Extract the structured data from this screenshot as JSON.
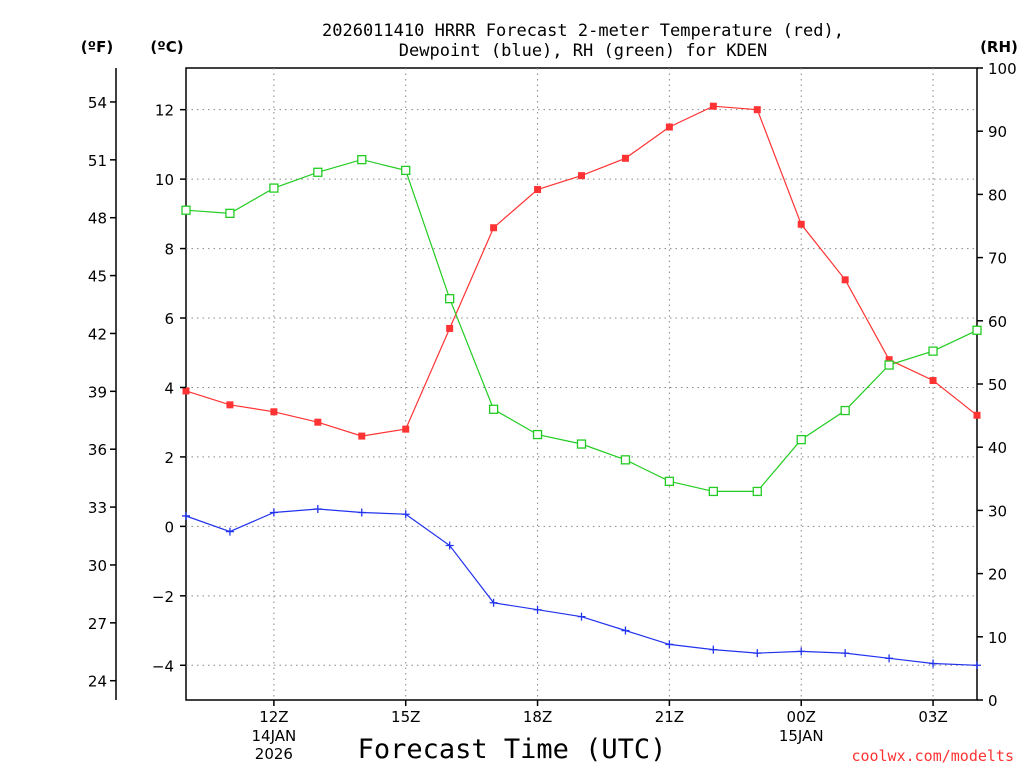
{
  "chart_data": {
    "type": "line",
    "title_lines": [
      "2026011410 HRRR Forecast 2-meter Temperature (red),",
      "Dewpoint (blue), RH (green) for KDEN"
    ],
    "xlabel": "Forecast Time (UTC)",
    "credit": "coolwx.com/modelts",
    "x_hours": [
      10,
      11,
      12,
      13,
      14,
      15,
      16,
      17,
      18,
      19,
      20,
      21,
      22,
      23,
      24,
      25,
      26,
      27,
      28
    ],
    "xlim": [
      10,
      28
    ],
    "x_ticks": [
      {
        "hour": 12,
        "label": "12Z",
        "sub": [
          "14JAN",
          "2026"
        ]
      },
      {
        "hour": 15,
        "label": "15Z",
        "sub": []
      },
      {
        "hour": 18,
        "label": "18Z",
        "sub": []
      },
      {
        "hour": 21,
        "label": "21Z",
        "sub": []
      },
      {
        "hour": 24,
        "label": "00Z",
        "sub": [
          "15JAN"
        ]
      },
      {
        "hour": 27,
        "label": "03Z",
        "sub": []
      }
    ],
    "axes": {
      "fahrenheit": {
        "unit_label": "(ºF)",
        "ticks": [
          24,
          27,
          30,
          33,
          36,
          39,
          42,
          45,
          48,
          51,
          54
        ]
      },
      "celsius": {
        "unit_label": "(ºC)",
        "ticks": [
          -4,
          -2,
          0,
          2,
          4,
          6,
          8,
          10,
          12
        ],
        "ylim": [
          -5,
          13.2
        ]
      },
      "rh": {
        "unit_label": "(RH)",
        "ticks": [
          0,
          10,
          20,
          30,
          40,
          50,
          60,
          70,
          80,
          90,
          100
        ],
        "ylim": [
          0,
          100
        ]
      }
    },
    "series": [
      {
        "name": "Temperature",
        "unit": "C",
        "axis": "celsius",
        "color": "#ff3333",
        "marker": "filled-square",
        "values": [
          3.9,
          3.5,
          3.3,
          3.0,
          2.6,
          2.8,
          5.7,
          8.6,
          9.7,
          10.1,
          10.6,
          11.5,
          12.1,
          12.0,
          8.7,
          7.1,
          4.8,
          4.2,
          3.2
        ]
      },
      {
        "name": "Dewpoint",
        "unit": "C",
        "axis": "celsius",
        "color": "#2233ee",
        "marker": "plus",
        "values": [
          0.3,
          -0.15,
          0.4,
          0.5,
          0.4,
          0.35,
          -0.55,
          -2.2,
          -2.4,
          -2.6,
          -3.0,
          -3.4,
          -3.55,
          -3.65,
          -3.6,
          -3.65,
          -3.8,
          -3.95,
          -4.0
        ]
      },
      {
        "name": "RH",
        "unit": "%",
        "axis": "rh",
        "color": "#22cc22",
        "marker": "open-square",
        "values": [
          77.5,
          77,
          81,
          83.5,
          85.5,
          83.8,
          63.5,
          46,
          42,
          40.5,
          38,
          34.6,
          33,
          33,
          41.2,
          45.8,
          53,
          55.2,
          58.5
        ]
      }
    ],
    "grid": true
  }
}
